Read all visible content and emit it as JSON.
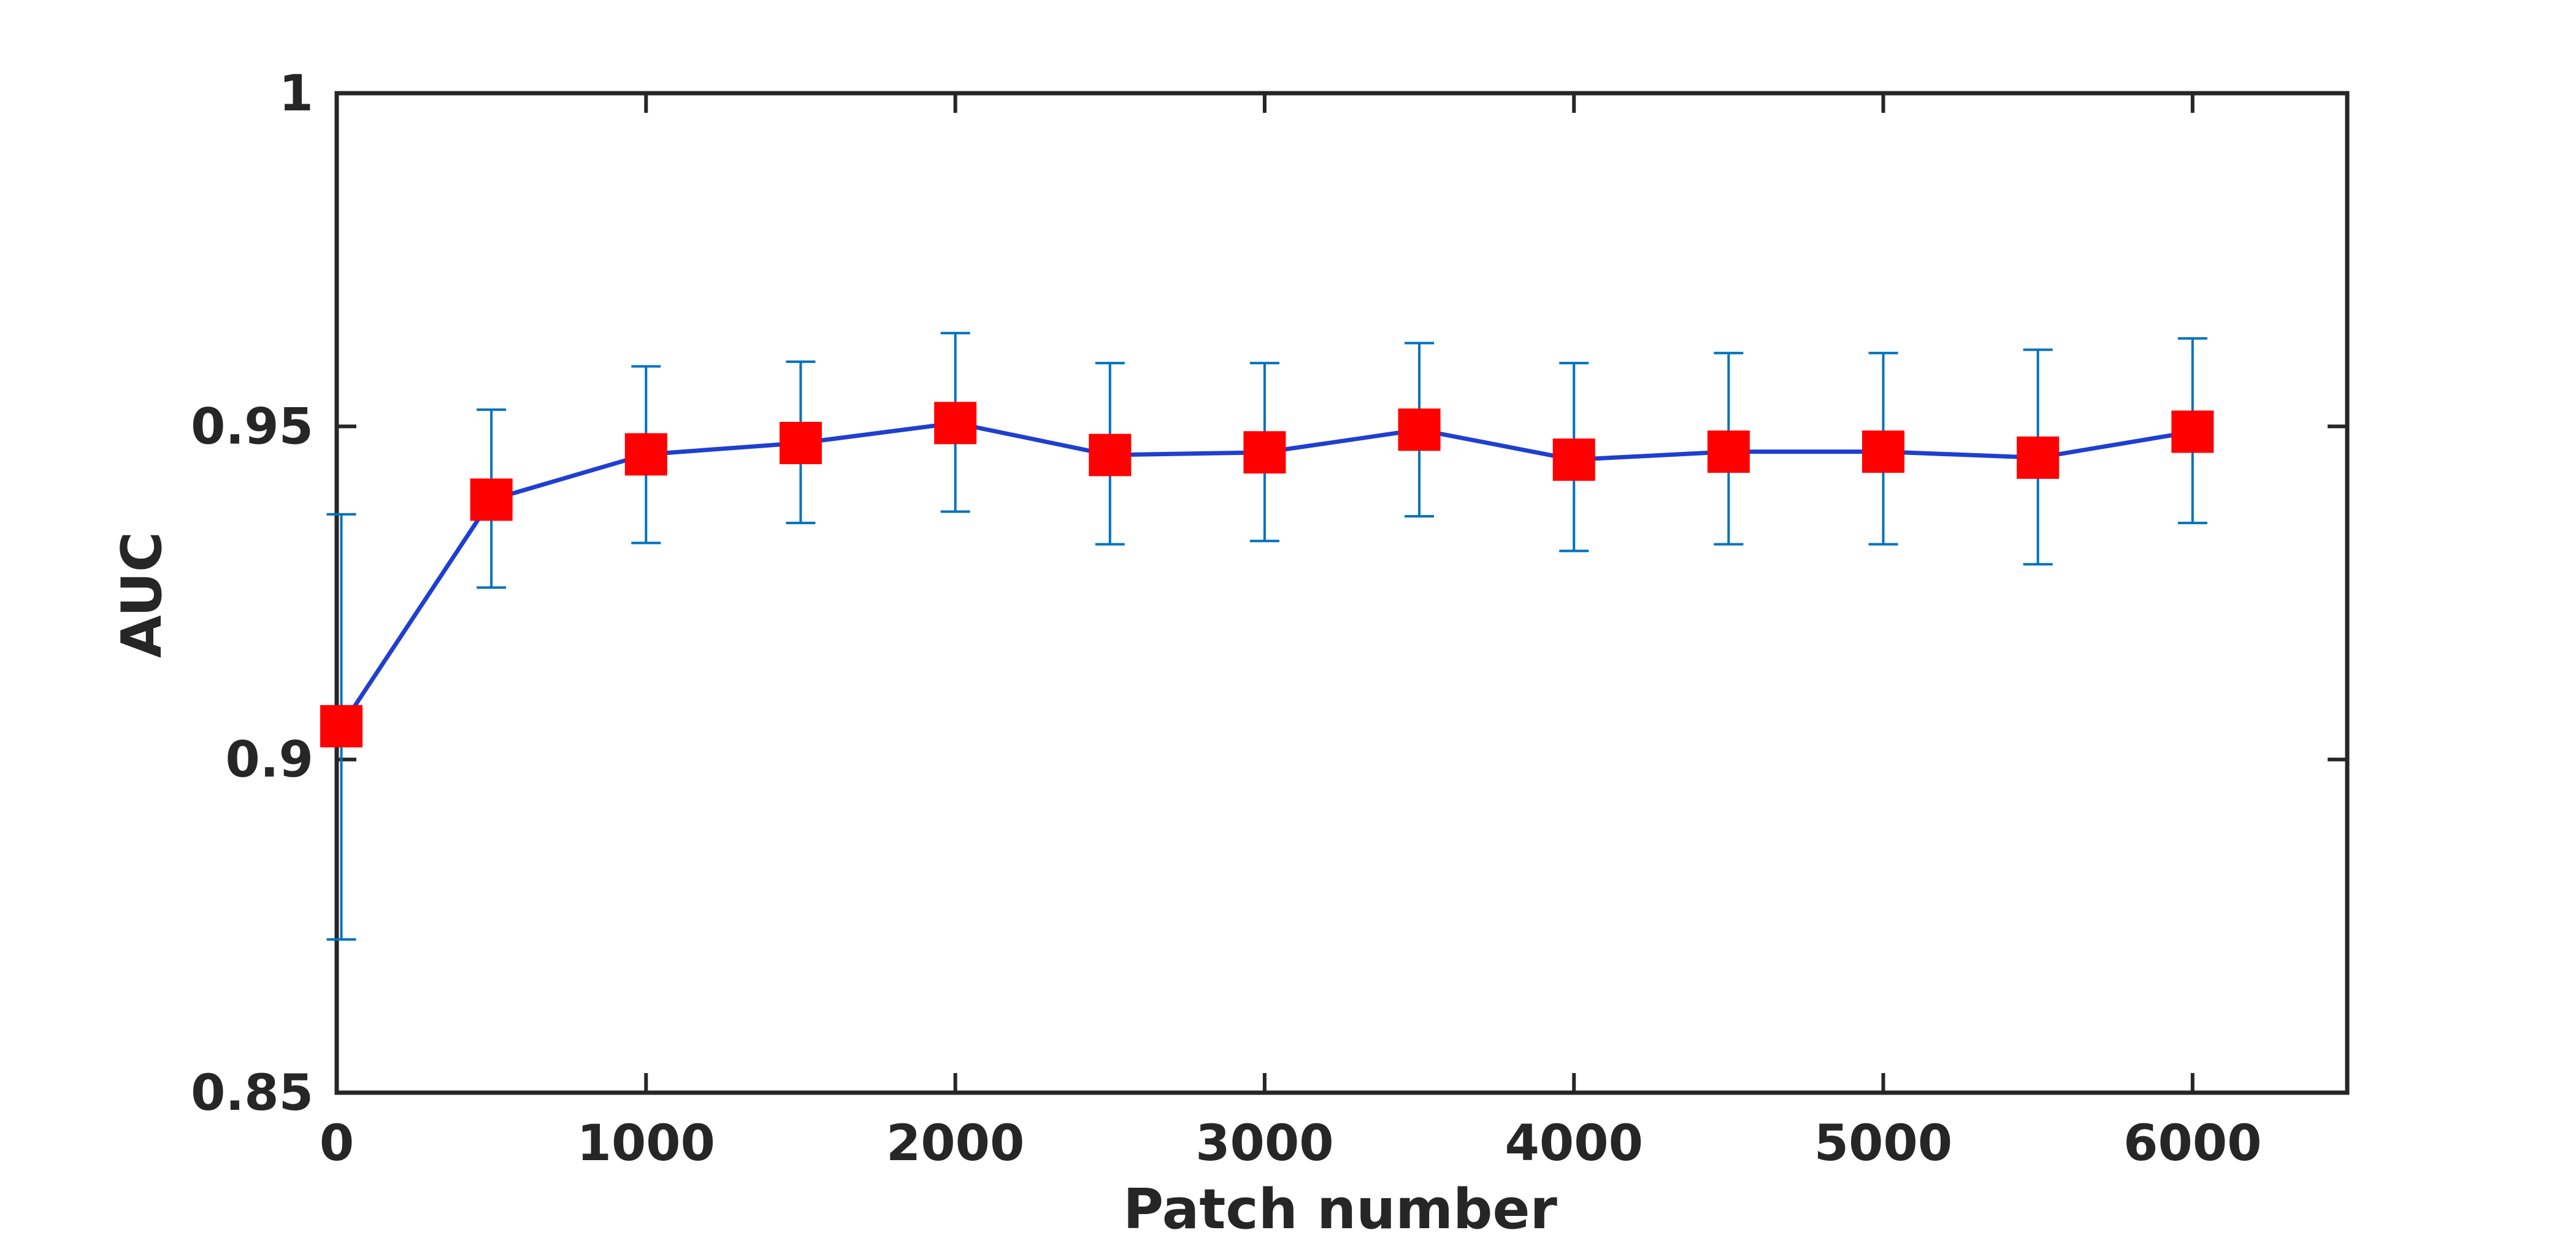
{
  "chart_data": {
    "type": "line",
    "title": "",
    "xlabel": "Patch number",
    "ylabel": "AUC",
    "xlim": [
      0,
      6500
    ],
    "ylim": [
      0.85,
      1
    ],
    "x_ticks": [
      0,
      1000,
      2000,
      3000,
      4000,
      5000,
      6000
    ],
    "x_tick_labels": [
      "0",
      "1000",
      "2000",
      "3000",
      "4000",
      "5000",
      "6000"
    ],
    "y_ticks": [
      0.85,
      0.9,
      0.95,
      1
    ],
    "y_tick_labels": [
      "0.85",
      "0.9",
      "0.95",
      "1"
    ],
    "grid": false,
    "series": [
      {
        "x": [
          15,
          500,
          1000,
          1500,
          2000,
          2500,
          3000,
          3500,
          4000,
          4500,
          5000,
          5500,
          6000
        ],
        "y": [
          0.905,
          0.939,
          0.9458,
          0.9475,
          0.9505,
          0.9457,
          0.9461,
          0.9495,
          0.945,
          0.9462,
          0.9462,
          0.9453,
          0.9492
        ],
        "err_lower": [
          0.873,
          0.9258,
          0.9325,
          0.9355,
          0.9372,
          0.9323,
          0.9328,
          0.9365,
          0.9313,
          0.9323,
          0.9323,
          0.9293,
          0.9355
        ],
        "err_upper": [
          0.9368,
          0.9525,
          0.959,
          0.9597,
          0.964,
          0.9595,
          0.9595,
          0.9625,
          0.9595,
          0.961,
          0.961,
          0.9615,
          0.9632
        ],
        "line_color": "#1f3fd0",
        "marker": "square",
        "marker_color": "#ff0000",
        "errorbar_color": "#0072bd"
      }
    ],
    "colors": {
      "axis": "#262626",
      "background": "#ffffff"
    }
  }
}
